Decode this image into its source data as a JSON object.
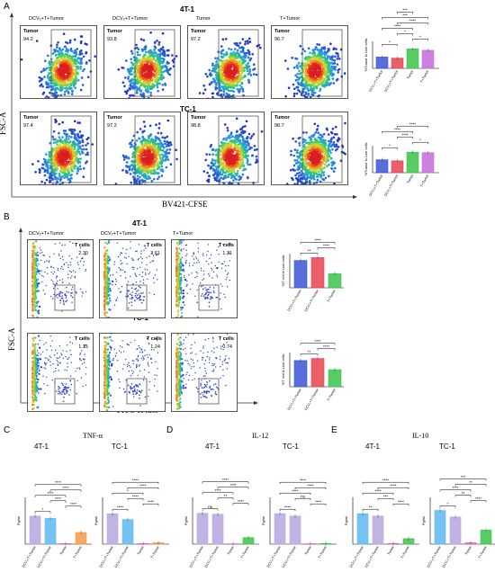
{
  "panels": {
    "A": "A",
    "B": "B",
    "C": "C",
    "D": "D",
    "E": "E"
  },
  "sectionA": {
    "row1_title": "4T-1",
    "row2_title": "TC-1",
    "col_labels": [
      "DCV₁+T+Tumor",
      "DCV₂+T+Tumor",
      "Tumor",
      "T+Tumor"
    ],
    "gate_label": "Tumor",
    "row1_values": [
      "94.2",
      "93.8",
      "97.2",
      "96.7"
    ],
    "row2_values": [
      "97.4",
      "97.2",
      "98.8",
      "98.7"
    ],
    "ylabel": "FSC-A",
    "xlabel": "BV421-CFSE"
  },
  "sectionB": {
    "row1_title": "4T-1",
    "row2_title": "TC-1",
    "col_labels": [
      "DCV₁+T+Tumor",
      "DCV₂+T+Tumor",
      "T+Tumor"
    ],
    "gate_label": "T cells",
    "row1_values": [
      "2.30",
      "2.61",
      "1.21"
    ],
    "row2_values": [
      "1.15",
      "1.24",
      "0.74"
    ],
    "ylabel": "FSC-A",
    "xlabel": "FITC-eFluor"
  },
  "sectionC": {
    "title": "TNF-α",
    "left": "4T-1",
    "right": "TC-1"
  },
  "sectionD": {
    "title": "IL-12",
    "left": "4T-1",
    "right": "TC-1"
  },
  "sectionE": {
    "title": "IL-10",
    "left": "4T-1",
    "right": "TC-1"
  },
  "colors": {
    "c1": "#3a55d6",
    "c2": "#e8434f",
    "c3": "#3bc44b",
    "c4": "#c36bd9",
    "lav": "#b7a6e0",
    "blue": "#5db8f0",
    "pink": "#e060c0",
    "orange": "#f39a4a"
  },
  "chart_data": [
    {
      "id": "A-4T1",
      "type": "bar",
      "ylabel": "%Tumor in Live cells",
      "categories": [
        "DCV₁+T+Tumor",
        "DCV₂+T+Tumor",
        "Tumor",
        "T+Tumor"
      ],
      "values": [
        94.2,
        93.8,
        97.2,
        96.7
      ],
      "ylim": [
        90,
        100
      ],
      "sig": [
        "*",
        "*",
        "*",
        "****",
        "****",
        "***",
        "***"
      ]
    },
    {
      "id": "A-TC1",
      "type": "bar",
      "ylabel": "%Tumor in Live cells",
      "categories": [
        "DCV₁+T+Tumor",
        "DCV₂+T+Tumor",
        "Tumor",
        "T+Tumor"
      ],
      "values": [
        97.4,
        97.2,
        98.8,
        98.7
      ],
      "ylim": [
        95,
        100
      ],
      "sig": [
        "*",
        "*",
        "****",
        "****",
        "****"
      ]
    },
    {
      "id": "B-4T1",
      "type": "bar",
      "ylabel": "%T cell in Live cells",
      "categories": [
        "DCV₁+T+Tumor",
        "DCV₂+T+Tumor",
        "T+Tumor"
      ],
      "values": [
        2.4,
        2.65,
        1.25
      ],
      "ylim": [
        0,
        3
      ],
      "sig": [
        "**",
        "****",
        "****"
      ]
    },
    {
      "id": "B-TC1",
      "type": "bar",
      "ylabel": "%T cell in Live cells",
      "categories": [
        "DCV₁+T+Tumor",
        "DCV₂+T+Tumor",
        "T+Tumor"
      ],
      "values": [
        1.15,
        1.24,
        0.75
      ],
      "ylim": [
        0,
        1.5
      ],
      "sig": [
        "**",
        "****",
        "****"
      ]
    },
    {
      "id": "C-4T1",
      "type": "bar",
      "ylabel": "Pg/ml",
      "categories": [
        "DCV₁+T+Tumor",
        "DCV₂+T+Tumor",
        "Tumor",
        "T+Tumor"
      ],
      "values": [
        24,
        22,
        0.5,
        10
      ],
      "ylim": [
        0,
        40
      ],
      "sig": [
        "*",
        "****",
        "****",
        "****",
        "****",
        "****"
      ]
    },
    {
      "id": "C-TC1",
      "type": "bar",
      "ylabel": "Pg/ml",
      "categories": [
        "DCV₁+T+Tumor",
        "DCV₂+T+Tumor",
        "Tumor",
        "T+Tumor"
      ],
      "values": [
        26,
        21,
        0.5,
        1.2
      ],
      "ylim": [
        0,
        40
      ],
      "sig": [
        "****",
        "****",
        "****",
        "*",
        "****",
        "****"
      ]
    },
    {
      "id": "D-4T1",
      "type": "bar",
      "ylabel": "Pg/ml",
      "categories": [
        "DCV₁+T+Tumor",
        "DCV₂+T+Tumor",
        "Tumor",
        "T+Tumor"
      ],
      "values": [
        165,
        160,
        2,
        35
      ],
      "ylim": [
        0,
        250
      ],
      "sig": [
        "ns",
        "****",
        "**",
        "****",
        "****",
        "****"
      ]
    },
    {
      "id": "D-TC1",
      "type": "bar",
      "ylabel": "Pg/ml",
      "categories": [
        "DCV₁+T+Tumor",
        "DCV₂+T+Tumor",
        "Tumor",
        "T+Tumor"
      ],
      "values": [
        130,
        120,
        2,
        3
      ],
      "ylim": [
        0,
        200
      ],
      "sig": [
        "****",
        "****",
        "ns",
        "****",
        "****",
        "****"
      ]
    },
    {
      "id": "E-4T1",
      "type": "bar",
      "ylabel": "Pg/ml",
      "categories": [
        "DCV₁+T+Tumor",
        "DCV₂+T+Tumor",
        "Tumor",
        "T+Tumor"
      ],
      "values": [
        390,
        360,
        10,
        70
      ],
      "ylim": [
        0,
        600
      ],
      "sig": [
        "**",
        "****",
        "***",
        "****",
        "****",
        "****"
      ]
    },
    {
      "id": "E-TC1",
      "type": "bar",
      "ylabel": "Pg/ml",
      "categories": [
        "DCV₁+T+Tumor",
        "DCV₂+T+Tumor",
        "Tumor",
        "T+Tumor"
      ],
      "values": [
        72,
        58,
        3,
        30
      ],
      "ylim": [
        0,
        100
      ],
      "sig": [
        "*",
        "****",
        "**",
        "****",
        "**",
        "***"
      ]
    }
  ]
}
